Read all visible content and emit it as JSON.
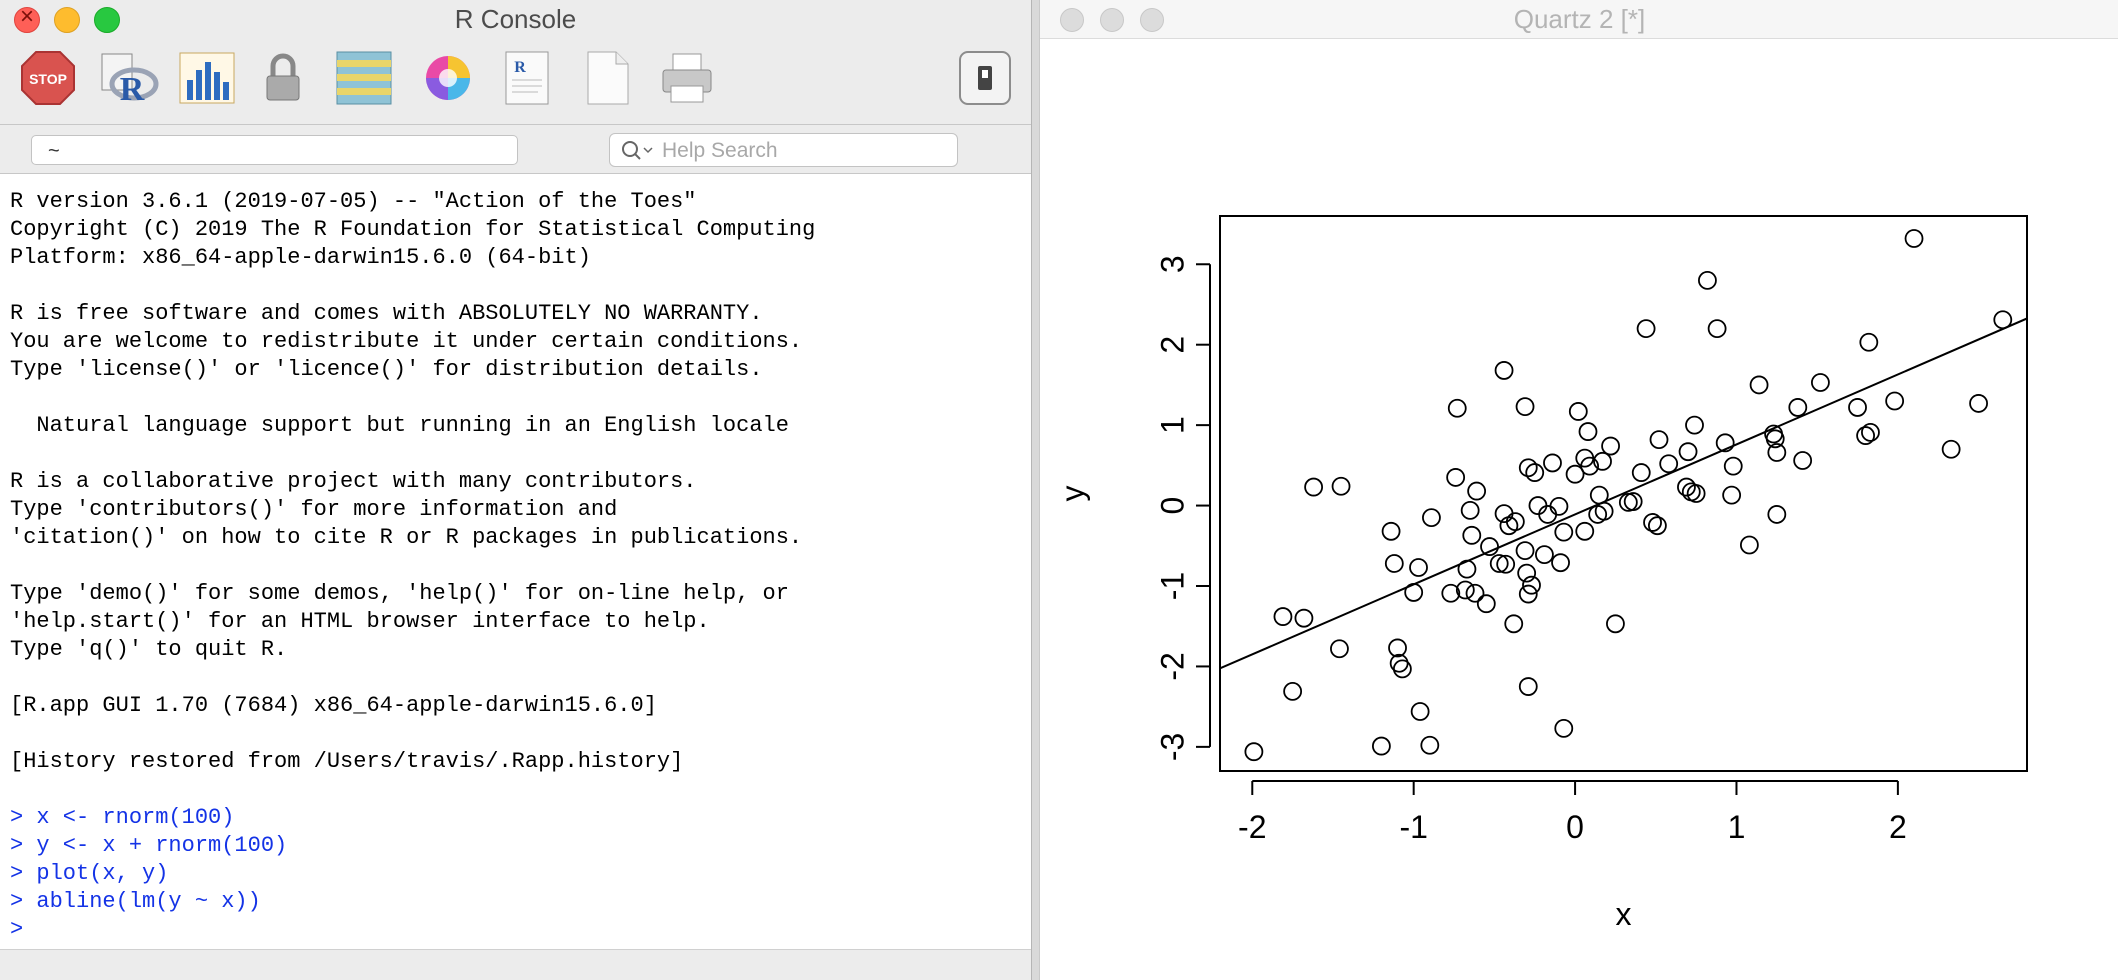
{
  "console_window": {
    "title": "R Console",
    "working_dir": "~",
    "search": {
      "placeholder": "Help Search"
    },
    "toolbar": [
      "stop-icon",
      "r-source-icon",
      "bar-chart-icon",
      "lock-icon",
      "data-table-icon",
      "color-wheel-icon",
      "r-document-icon",
      "blank-document-icon",
      "printer-icon",
      "toggle-icon"
    ],
    "output_lines": [
      "R version 3.6.1 (2019-07-05) -- \"Action of the Toes\"",
      "Copyright (C) 2019 The R Foundation for Statistical Computing",
      "Platform: x86_64-apple-darwin15.6.0 (64-bit)",
      "",
      "R is free software and comes with ABSOLUTELY NO WARRANTY.",
      "You are welcome to redistribute it under certain conditions.",
      "Type 'license()' or 'licence()' for distribution details.",
      "",
      "  Natural language support but running in an English locale",
      "",
      "R is a collaborative project with many contributors.",
      "Type 'contributors()' for more information and",
      "'citation()' on how to cite R or R packages in publications.",
      "",
      "Type 'demo()' for some demos, 'help()' for on-line help, or",
      "'help.start()' for an HTML browser interface to help.",
      "Type 'q()' to quit R.",
      "",
      "[R.app GUI 1.70 (7684) x86_64-apple-darwin15.6.0]",
      "",
      "[History restored from /Users/travis/.Rapp.history]",
      ""
    ],
    "commands": [
      "> x <- rnorm(100)",
      "> y <- x + rnorm(100)",
      "> plot(x, y)",
      "> abline(lm(y ~ x))",
      ">"
    ],
    "colors": {
      "command": "#1433e6",
      "stop": "#d9534f"
    }
  },
  "plot_window": {
    "title": "Quartz 2 [*]"
  },
  "chart_data": {
    "type": "scatter",
    "title": "",
    "xlabel": "x",
    "ylabel": "y",
    "xlim": [
      -2.2,
      2.8
    ],
    "ylim": [
      -3.3,
      3.6
    ],
    "xticks": [
      -2,
      -1,
      0,
      1,
      2
    ],
    "xtick_labels": [
      "-2",
      "-1",
      "0",
      "1",
      "2"
    ],
    "yticks": [
      -3,
      -2,
      -1,
      0,
      1,
      2,
      3
    ],
    "ytick_labels": [
      "-3",
      "-2",
      "-1",
      "0",
      "1",
      "2",
      "3"
    ],
    "marker": "open-circle",
    "fit_line": {
      "intercept": -0.11,
      "slope": 0.87
    },
    "points": [
      [
        2.1,
        3.32
      ],
      [
        0.82,
        2.8
      ],
      [
        2.65,
        2.31
      ],
      [
        0.44,
        2.2
      ],
      [
        0.88,
        2.2
      ],
      [
        1.82,
        2.03
      ],
      [
        -0.44,
        1.68
      ],
      [
        1.52,
        1.53
      ],
      [
        1.14,
        1.5
      ],
      [
        2.5,
        1.27
      ],
      [
        1.98,
        1.3
      ],
      [
        -0.73,
        1.21
      ],
      [
        -0.31,
        1.23
      ],
      [
        0.02,
        1.17
      ],
      [
        1.75,
        1.22
      ],
      [
        1.38,
        1.22
      ],
      [
        0.74,
        1.0
      ],
      [
        0.08,
        0.92
      ],
      [
        1.83,
        0.91
      ],
      [
        1.8,
        0.87
      ],
      [
        1.23,
        0.89
      ],
      [
        0.93,
        0.78
      ],
      [
        1.24,
        0.83
      ],
      [
        0.52,
        0.82
      ],
      [
        2.33,
        0.7
      ],
      [
        0.22,
        0.74
      ],
      [
        0.7,
        0.67
      ],
      [
        1.25,
        0.66
      ],
      [
        1.41,
        0.56
      ],
      [
        0.06,
        0.59
      ],
      [
        0.58,
        0.52
      ],
      [
        0.17,
        0.55
      ],
      [
        -0.14,
        0.53
      ],
      [
        0.09,
        0.49
      ],
      [
        -0.29,
        0.47
      ],
      [
        0.98,
        0.49
      ],
      [
        -0.25,
        0.41
      ],
      [
        0.0,
        0.39
      ],
      [
        0.41,
        0.41
      ],
      [
        -0.74,
        0.35
      ],
      [
        -1.62,
        0.23
      ],
      [
        -1.45,
        0.24
      ],
      [
        -0.61,
        0.18
      ],
      [
        0.69,
        0.23
      ],
      [
        0.72,
        0.17
      ],
      [
        0.75,
        0.15
      ],
      [
        0.97,
        0.13
      ],
      [
        0.15,
        0.13
      ],
      [
        0.33,
        0.04
      ],
      [
        0.36,
        0.05
      ],
      [
        -0.23,
        0.0
      ],
      [
        -0.1,
        -0.01
      ],
      [
        -0.65,
        -0.06
      ],
      [
        -0.44,
        -0.1
      ],
      [
        0.18,
        -0.07
      ],
      [
        0.14,
        -0.11
      ],
      [
        -0.17,
        -0.11
      ],
      [
        -0.37,
        -0.2
      ],
      [
        -0.41,
        -0.25
      ],
      [
        1.25,
        -0.11
      ],
      [
        0.48,
        -0.21
      ],
      [
        0.51,
        -0.25
      ],
      [
        -0.89,
        -0.15
      ],
      [
        -1.14,
        -0.32
      ],
      [
        -0.64,
        -0.37
      ],
      [
        0.06,
        -0.32
      ],
      [
        -0.07,
        -0.33
      ],
      [
        -0.53,
        -0.51
      ],
      [
        -0.31,
        -0.56
      ],
      [
        1.08,
        -0.49
      ],
      [
        -0.19,
        -0.61
      ],
      [
        -0.47,
        -0.72
      ],
      [
        -0.43,
        -0.73
      ],
      [
        -0.09,
        -0.71
      ],
      [
        -1.12,
        -0.72
      ],
      [
        -0.97,
        -0.77
      ],
      [
        -0.67,
        -0.79
      ],
      [
        -0.3,
        -0.84
      ],
      [
        -0.27,
        -0.99
      ],
      [
        -0.68,
        -1.05
      ],
      [
        -0.29,
        -1.1
      ],
      [
        -1.0,
        -1.08
      ],
      [
        -0.62,
        -1.09
      ],
      [
        -0.77,
        -1.09
      ],
      [
        -0.55,
        -1.22
      ],
      [
        -1.81,
        -1.38
      ],
      [
        -1.68,
        -1.4
      ],
      [
        -0.38,
        -1.47
      ],
      [
        0.25,
        -1.47
      ],
      [
        -1.46,
        -1.78
      ],
      [
        -1.1,
        -1.77
      ],
      [
        -1.09,
        -1.96
      ],
      [
        -1.07,
        -2.03
      ],
      [
        -1.75,
        -2.31
      ],
      [
        -0.29,
        -2.25
      ],
      [
        -0.96,
        -2.56
      ],
      [
        -0.07,
        -2.77
      ],
      [
        -1.2,
        -2.99
      ],
      [
        -0.9,
        -2.98
      ],
      [
        -1.99,
        -3.06
      ]
    ]
  }
}
